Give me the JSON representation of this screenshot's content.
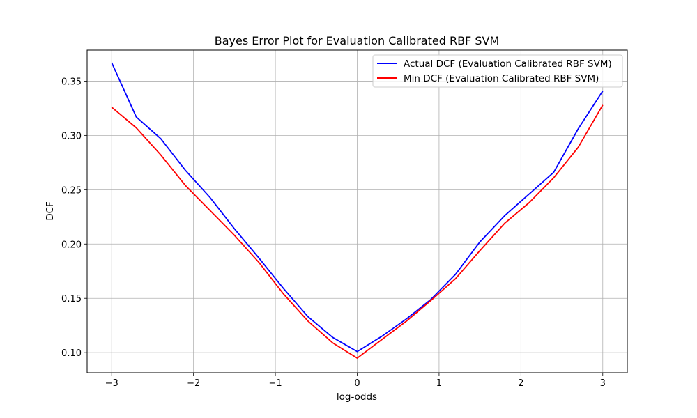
{
  "chart_data": {
    "type": "line",
    "title": "Bayes Error Plot for Evaluation Calibrated RBF SVM",
    "xlabel": "log-odds",
    "ylabel": "DCF",
    "xlim": [
      -3.3,
      3.3
    ],
    "ylim": [
      0.0815,
      0.3785
    ],
    "grid": true,
    "legend_position": "upper-right",
    "x_ticks": [
      -3,
      -2,
      -1,
      0,
      1,
      2,
      3
    ],
    "x_tick_labels": [
      "−3",
      "−2",
      "−1",
      "0",
      "1",
      "2",
      "3"
    ],
    "y_ticks": [
      0.1,
      0.15,
      0.2,
      0.25,
      0.3,
      0.35
    ],
    "y_tick_labels": [
      "0.10",
      "0.15",
      "0.20",
      "0.25",
      "0.30",
      "0.35"
    ],
    "x": [
      -3.0,
      -2.7,
      -2.4,
      -2.1,
      -1.8,
      -1.5,
      -1.2,
      -0.9,
      -0.6,
      -0.3,
      0.0,
      0.3,
      0.6,
      0.9,
      1.2,
      1.5,
      1.8,
      2.1,
      2.4,
      2.7,
      3.0
    ],
    "series": [
      {
        "name": "Actual DCF (Evaluation Calibrated RBF SVM)",
        "color": "#0000ff",
        "values": [
          0.367,
          0.317,
          0.297,
          0.268,
          0.243,
          0.214,
          0.187,
          0.159,
          0.133,
          0.114,
          0.101,
          0.115,
          0.131,
          0.149,
          0.172,
          0.202,
          0.226,
          0.246,
          0.266,
          0.306,
          0.341
        ]
      },
      {
        "name": "Min DCF (Evaluation Calibrated RBF SVM)",
        "color": "#ff0000",
        "values": [
          0.326,
          0.307,
          0.282,
          0.254,
          0.231,
          0.208,
          0.183,
          0.154,
          0.129,
          0.109,
          0.095,
          0.112,
          0.129,
          0.148,
          0.168,
          0.194,
          0.219,
          0.238,
          0.261,
          0.289,
          0.328
        ]
      }
    ]
  }
}
